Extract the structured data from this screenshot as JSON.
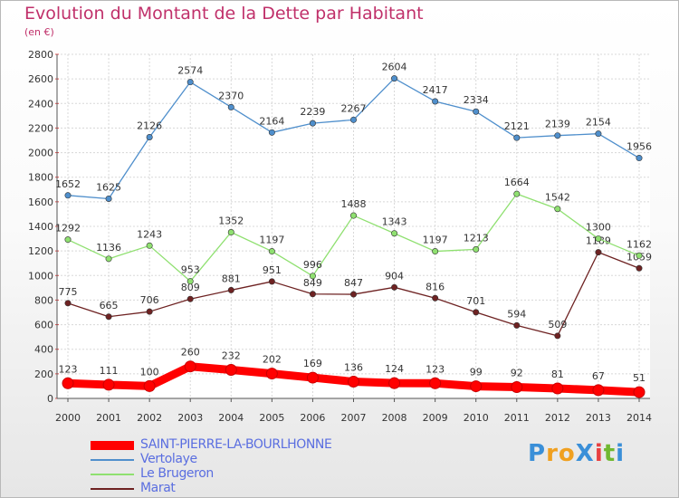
{
  "title": "Evolution du Montant de la Dette par Habitant",
  "subtitle": "(en €)",
  "logo": {
    "text": "ProXiti",
    "letters": [
      "P",
      "r",
      "o",
      "X",
      "i",
      "t",
      "i"
    ],
    "colors": [
      "#3a8fd8",
      "#f0a020",
      "#f0a020",
      "#3a8fd8",
      "#e84040",
      "#70b830",
      "#3a8fd8"
    ]
  },
  "chart_data": {
    "type": "line",
    "title": "Evolution du Montant de la Dette par Habitant",
    "subtitle": "(en €)",
    "x": [
      "2000",
      "2001",
      "2002",
      "2003",
      "2004",
      "2005",
      "2006",
      "2007",
      "2008",
      "2009",
      "2010",
      "2011",
      "2012",
      "2013",
      "2014"
    ],
    "yticks": [
      "0",
      "200",
      "400",
      "600",
      "800",
      "1000",
      "1200",
      "1400",
      "1600",
      "1800",
      "2000",
      "2200",
      "2400",
      "2600",
      "2800"
    ],
    "ylim": [
      0,
      2800
    ],
    "grid": true,
    "legend_position": "bottom-left",
    "series": [
      {
        "name": "SAINT-PIERRE-LA-BOURLHONNE",
        "color": "#ff0000",
        "label_color": "#5a6ee0",
        "values": [
          123,
          111,
          100,
          260,
          232,
          202,
          169,
          136,
          124,
          123,
          99,
          92,
          81,
          67,
          51
        ]
      },
      {
        "name": "Vertolaye",
        "color": "#4f8fcc",
        "label_color": "#5a6ee0",
        "values": [
          1652,
          1625,
          2126,
          2574,
          2370,
          2164,
          2239,
          2267,
          2604,
          2417,
          2334,
          2121,
          2139,
          2154,
          1956
        ]
      },
      {
        "name": "Le Brugeron",
        "color": "#8fe070",
        "label_color": "#5a6ee0",
        "values": [
          1292,
          1136,
          1243,
          953,
          1352,
          1197,
          996,
          1488,
          1343,
          1197,
          1213,
          1664,
          1542,
          1300,
          1162
        ]
      },
      {
        "name": "Marat",
        "color": "#6e2222",
        "label_color": "#5a6ee0",
        "values": [
          775,
          665,
          706,
          809,
          881,
          951,
          849,
          847,
          904,
          816,
          701,
          594,
          509,
          1189,
          1059
        ]
      }
    ]
  }
}
